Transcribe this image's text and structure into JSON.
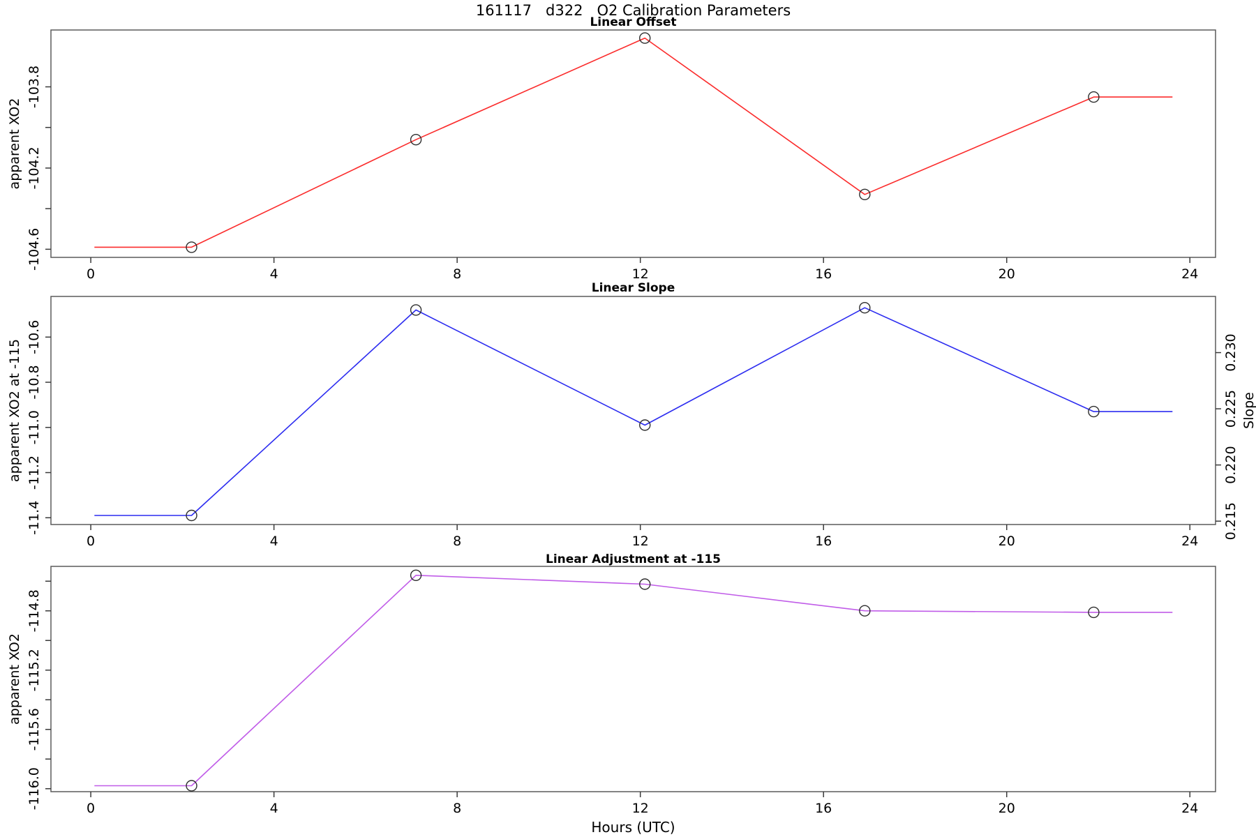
{
  "page": {
    "title": "161117   d322   O2 Calibration Parameters",
    "xlabel": "Hours (UTC)",
    "background": "#ffffff",
    "box_color": "#5a5a5a",
    "tick_color": "#3a3a3a",
    "marker_color": "#2e2e2e",
    "text_color": "#000000"
  },
  "chart_data": [
    {
      "type": "line",
      "title": "Linear Offset",
      "ylabel": "apparent XO2",
      "color": "#fb2c2c",
      "marker": "open-circle",
      "x": [
        2.2,
        7.1,
        12.1,
        16.9,
        21.9
      ],
      "y": [
        -104.59,
        -104.06,
        -103.56,
        -104.33,
        -103.85
      ],
      "line_extend_x": [
        0.08,
        23.62
      ],
      "xlim": [
        -0.87,
        24.56
      ],
      "ylim": [
        -104.64,
        -103.52
      ],
      "x_ticks": [
        0,
        4,
        8,
        12,
        16,
        20,
        24
      ],
      "x_tick_labels": [
        "0",
        "4",
        "8",
        "12",
        "16",
        "20",
        "24"
      ],
      "y_ticks": [
        -103.8,
        -104.0,
        -104.2,
        -104.4,
        -104.6
      ],
      "y_tick_labels": [
        "-103.8",
        "",
        "-104.2",
        "",
        "-104.6"
      ],
      "grid": false,
      "legend": false
    },
    {
      "type": "line",
      "title": "Linear Slope",
      "ylabel": "apparent XO2 at -115",
      "color": "#2c2cf0",
      "marker": "open-circle",
      "x": [
        2.2,
        7.1,
        12.1,
        16.9,
        21.9
      ],
      "y": [
        -11.39,
        -10.48,
        -10.99,
        -10.47,
        -10.93
      ],
      "line_extend_x": [
        0.08,
        23.62
      ],
      "xlim": [
        -0.87,
        24.56
      ],
      "ylim": [
        -11.43,
        -10.42
      ],
      "x_ticks": [
        0,
        4,
        8,
        12,
        16,
        20,
        24
      ],
      "x_tick_labels": [
        "0",
        "4",
        "8",
        "12",
        "16",
        "20",
        "24"
      ],
      "y_ticks": [
        -10.6,
        -10.8,
        -11.0,
        -11.2,
        -11.4
      ],
      "y_tick_labels": [
        "-10.6",
        "-10.8",
        "-11.0",
        "-11.2",
        "-11.4"
      ],
      "right_axis": {
        "label": "Slope",
        "lim": [
          0.2147,
          0.235
        ],
        "ticks": [
          0.215,
          0.22,
          0.225,
          0.23
        ],
        "tick_labels": [
          "0.215",
          "0.220",
          "0.225",
          "0.230"
        ],
        "slope_at_points": [
          0.2155,
          0.2338,
          0.2236,
          0.2339,
          0.2249
        ]
      },
      "grid": false,
      "legend": false
    },
    {
      "type": "line",
      "title": "Linear Adjustment at -115",
      "ylabel": "apparent XO2",
      "color": "#c05ce8",
      "marker": "open-circle",
      "x": [
        2.2,
        7.1,
        12.1,
        16.9,
        21.9
      ],
      "y": [
        -115.98,
        -114.56,
        -114.62,
        -114.8,
        -114.81
      ],
      "line_extend_x": [
        0.08,
        23.62
      ],
      "xlim": [
        -0.87,
        24.56
      ],
      "ylim": [
        -116.02,
        -114.5
      ],
      "x_ticks": [
        0,
        4,
        8,
        12,
        16,
        20,
        24
      ],
      "x_tick_labels": [
        "0",
        "4",
        "8",
        "12",
        "16",
        "20",
        "24"
      ],
      "y_ticks": [
        -114.6,
        -114.8,
        -115.0,
        -115.2,
        -115.4,
        -115.6,
        -115.8,
        -116.0
      ],
      "y_tick_labels": [
        "",
        "-114.8",
        "",
        "-115.2",
        "",
        "-115.6",
        "",
        "-116.0"
      ],
      "grid": false,
      "legend": false
    }
  ]
}
